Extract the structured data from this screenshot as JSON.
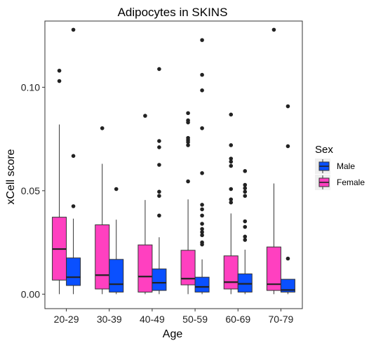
{
  "chart_data": {
    "type": "box",
    "title": "Adipocytes in SKINS",
    "xlabel": "Age",
    "ylabel": "xCell score",
    "categories": [
      "20-29",
      "30-39",
      "40-49",
      "50-59",
      "60-69",
      "70-79"
    ],
    "ylim": [
      -0.007,
      0.132
    ],
    "yticks": [
      0.0,
      0.05,
      0.1
    ],
    "ytick_labels": [
      "0.00",
      "0.05",
      "0.10"
    ],
    "grid": false,
    "legend": {
      "title": "Sex",
      "position": "right",
      "entries": [
        "Male",
        "Female"
      ]
    },
    "series": [
      {
        "name": "Female",
        "color": "#FF40C0",
        "boxes": [
          {
            "category": "20-29",
            "min": 0.0,
            "q1": 0.0068,
            "median": 0.0218,
            "q3": 0.0372,
            "max": 0.082,
            "outliers": [
              0.108,
              0.103
            ]
          },
          {
            "category": "30-39",
            "min": 0.0,
            "q1": 0.0025,
            "median": 0.0092,
            "q3": 0.0335,
            "max": 0.063,
            "outliers": [
              0.0802
            ]
          },
          {
            "category": "40-49",
            "min": 0.0,
            "q1": 0.001,
            "median": 0.0085,
            "q3": 0.0238,
            "max": 0.0455,
            "outliers": [
              0.0862
            ]
          },
          {
            "category": "50-59",
            "min": 0.0,
            "q1": 0.0045,
            "median": 0.0075,
            "q3": 0.0212,
            "max": 0.0458,
            "outliers": [
              0.0875,
              0.084,
              0.083,
              0.0755,
              0.0745,
              0.0735,
              0.072,
              0.0545
            ]
          },
          {
            "category": "60-69",
            "min": 0.0,
            "q1": 0.0025,
            "median": 0.0058,
            "q3": 0.0185,
            "max": 0.039,
            "outliers": [
              0.0868,
              0.072,
              0.0655,
              0.064,
              0.062,
              0.0508,
              0.0458,
              0.0443
            ]
          },
          {
            "category": "70-79",
            "min": 0.0,
            "q1": 0.0018,
            "median": 0.0048,
            "q3": 0.0228,
            "max": 0.0535,
            "outliers": [
              0.1278
            ]
          }
        ]
      },
      {
        "name": "Male",
        "color": "#0A50FF",
        "boxes": [
          {
            "category": "20-29",
            "min": 0.0,
            "q1": 0.0042,
            "median": 0.0082,
            "q3": 0.0175,
            "max": 0.0365,
            "outliers": [
              0.1278,
              0.0668,
              0.0425
            ]
          },
          {
            "category": "30-39",
            "min": 0.0,
            "q1": 0.001,
            "median": 0.0048,
            "q3": 0.0168,
            "max": 0.036,
            "outliers": [
              0.0508
            ]
          },
          {
            "category": "40-49",
            "min": 0.0,
            "q1": 0.0018,
            "median": 0.0055,
            "q3": 0.0122,
            "max": 0.0275,
            "outliers": [
              0.1088,
              0.074,
              0.071,
              0.0625,
              0.0495,
              0.0475,
              0.038
            ]
          },
          {
            "category": "50-59",
            "min": 0.0,
            "q1": 0.001,
            "median": 0.0035,
            "q3": 0.0082,
            "max": 0.0168,
            "outliers": [
              0.1228,
              0.106,
              0.0985,
              0.0802,
              0.0585,
              0.0432,
              0.041,
              0.038,
              0.034,
              0.0315,
              0.03,
              0.0285,
              0.025,
              0.024
            ]
          },
          {
            "category": "60-69",
            "min": 0.0,
            "q1": 0.001,
            "median": 0.005,
            "q3": 0.0098,
            "max": 0.0215,
            "outliers": [
              0.0595,
              0.0528,
              0.0512,
              0.0495,
              0.0475,
              0.0352,
              0.0325,
              0.0278,
              0.0262
            ]
          },
          {
            "category": "70-79",
            "min": 0.0,
            "q1": 0.001,
            "median": 0.002,
            "q3": 0.0072,
            "max": 0.0072,
            "outliers": [
              0.0908,
              0.0715,
              0.0172
            ]
          }
        ]
      }
    ]
  }
}
